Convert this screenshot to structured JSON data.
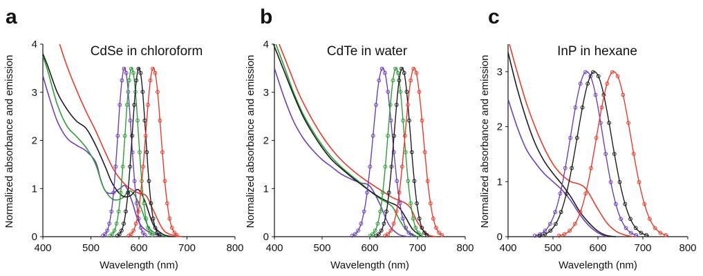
{
  "chart_data": [
    {
      "type": "line",
      "panel_label": "a",
      "title": "CdSe in chloroform",
      "xlabel": "Wavelength (nm)",
      "ylabel": "Normalized absorbance and emission",
      "xlim": [
        400,
        800
      ],
      "ylim": [
        0,
        4
      ],
      "xticks": [
        400,
        500,
        600,
        700,
        800
      ],
      "yticks": [
        0,
        1,
        2,
        3,
        4
      ],
      "series": [
        {
          "name": "absorbance-purple",
          "kind": "absorbance",
          "color": "#6a3fb5",
          "points": [
            [
              400,
              3.35
            ],
            [
              410,
              3.0
            ],
            [
              430,
              2.4
            ],
            [
              450,
              2.05
            ],
            [
              470,
              1.9
            ],
            [
              490,
              1.78
            ],
            [
              510,
              1.55
            ],
            [
              520,
              1.2
            ],
            [
              530,
              0.95
            ],
            [
              545,
              0.9
            ],
            [
              560,
              1.0
            ],
            [
              572,
              1.05
            ],
            [
              585,
              0.75
            ],
            [
              600,
              0.3
            ],
            [
              620,
              0.1
            ],
            [
              650,
              0.0
            ]
          ]
        },
        {
          "name": "absorbance-green",
          "kind": "absorbance",
          "color": "#2e9a3a",
          "points": [
            [
              400,
              3.75
            ],
            [
              410,
              3.45
            ],
            [
              430,
              2.75
            ],
            [
              450,
              2.3
            ],
            [
              470,
              2.08
            ],
            [
              490,
              1.85
            ],
            [
              510,
              1.5
            ],
            [
              525,
              1.05
            ],
            [
              545,
              0.78
            ],
            [
              565,
              0.8
            ],
            [
              582,
              0.95
            ],
            [
              600,
              0.7
            ],
            [
              620,
              0.2
            ],
            [
              640,
              0.05
            ],
            [
              660,
              0.0
            ]
          ]
        },
        {
          "name": "absorbance-black",
          "kind": "absorbance",
          "color": "#1a1a1a",
          "points": [
            [
              400,
              3.8
            ],
            [
              410,
              3.55
            ],
            [
              430,
              3.0
            ],
            [
              450,
              2.65
            ],
            [
              470,
              2.4
            ],
            [
              490,
              2.25
            ],
            [
              510,
              1.9
            ],
            [
              530,
              1.45
            ],
            [
              545,
              1.1
            ],
            [
              565,
              0.85
            ],
            [
              582,
              0.85
            ],
            [
              598,
              0.98
            ],
            [
              612,
              0.75
            ],
            [
              630,
              0.25
            ],
            [
              650,
              0.05
            ],
            [
              670,
              0.0
            ]
          ]
        },
        {
          "name": "absorbance-red",
          "kind": "absorbance",
          "color": "#e8382a",
          "points": [
            [
              435,
              4.0
            ],
            [
              450,
              3.55
            ],
            [
              470,
              3.05
            ],
            [
              490,
              2.6
            ],
            [
              510,
              2.2
            ],
            [
              530,
              1.75
            ],
            [
              550,
              1.35
            ],
            [
              575,
              1.05
            ],
            [
              600,
              0.9
            ],
            [
              615,
              0.85
            ],
            [
              630,
              0.55
            ],
            [
              650,
              0.15
            ],
            [
              670,
              0.03
            ],
            [
              690,
              0.0
            ]
          ]
        },
        {
          "name": "emission-purple",
          "kind": "emission",
          "color": "#6a3fb5",
          "peak": 570,
          "width": 14,
          "height": 3.5
        },
        {
          "name": "emission-green",
          "kind": "emission",
          "color": "#2e9a3a",
          "peak": 585,
          "width": 14,
          "height": 3.5
        },
        {
          "name": "emission-black",
          "kind": "emission",
          "color": "#1a1a1a",
          "peak": 600,
          "width": 14,
          "height": 3.5
        },
        {
          "name": "emission-red",
          "kind": "emission",
          "color": "#e8382a",
          "peak": 630,
          "width": 16,
          "height": 3.5
        }
      ]
    },
    {
      "type": "line",
      "panel_label": "b",
      "title": "CdTe in water",
      "xlabel": "Wavelength (nm)",
      "ylabel": "Normalized absorbance and emission",
      "xlim": [
        400,
        800
      ],
      "ylim": [
        0,
        4
      ],
      "xticks": [
        400,
        500,
        600,
        700,
        800
      ],
      "yticks": [
        0,
        1,
        2,
        3,
        4
      ],
      "series": [
        {
          "name": "absorbance-purple",
          "kind": "absorbance",
          "color": "#6a3fb5",
          "points": [
            [
              400,
              3.5
            ],
            [
              420,
              2.9
            ],
            [
              440,
              2.4
            ],
            [
              460,
              2.05
            ],
            [
              480,
              1.8
            ],
            [
              500,
              1.6
            ],
            [
              520,
              1.45
            ],
            [
              540,
              1.3
            ],
            [
              560,
              1.2
            ],
            [
              580,
              1.12
            ],
            [
              600,
              1.05
            ],
            [
              620,
              0.7
            ],
            [
              640,
              0.25
            ],
            [
              660,
              0.05
            ],
            [
              680,
              0.0
            ]
          ]
        },
        {
          "name": "absorbance-green",
          "kind": "absorbance",
          "color": "#2e9a3a",
          "points": [
            [
              403,
              4.0
            ],
            [
              420,
              3.55
            ],
            [
              440,
              3.0
            ],
            [
              460,
              2.55
            ],
            [
              480,
              2.2
            ],
            [
              500,
              1.9
            ],
            [
              520,
              1.65
            ],
            [
              540,
              1.45
            ],
            [
              560,
              1.28
            ],
            [
              580,
              1.12
            ],
            [
              600,
              0.95
            ],
            [
              620,
              0.8
            ],
            [
              640,
              0.68
            ],
            [
              650,
              0.58
            ],
            [
              665,
              0.3
            ],
            [
              680,
              0.1
            ],
            [
              700,
              0.0
            ]
          ]
        },
        {
          "name": "absorbance-black",
          "kind": "absorbance",
          "color": "#1a1a1a",
          "points": [
            [
              398,
              4.0
            ],
            [
              420,
              3.45
            ],
            [
              440,
              2.95
            ],
            [
              460,
              2.5
            ],
            [
              480,
              2.15
            ],
            [
              500,
              1.85
            ],
            [
              520,
              1.6
            ],
            [
              540,
              1.42
            ],
            [
              560,
              1.25
            ],
            [
              580,
              1.1
            ],
            [
              600,
              0.95
            ],
            [
              620,
              0.82
            ],
            [
              640,
              0.72
            ],
            [
              660,
              0.62
            ],
            [
              675,
              0.4
            ],
            [
              690,
              0.15
            ],
            [
              710,
              0.0
            ]
          ]
        },
        {
          "name": "absorbance-red",
          "kind": "absorbance",
          "color": "#e8382a",
          "points": [
            [
              410,
              4.0
            ],
            [
              430,
              3.5
            ],
            [
              450,
              3.0
            ],
            [
              470,
              2.6
            ],
            [
              490,
              2.25
            ],
            [
              510,
              1.95
            ],
            [
              530,
              1.7
            ],
            [
              550,
              1.5
            ],
            [
              570,
              1.33
            ],
            [
              590,
              1.18
            ],
            [
              610,
              1.05
            ],
            [
              630,
              0.92
            ],
            [
              650,
              0.8
            ],
            [
              670,
              0.72
            ],
            [
              685,
              0.6
            ],
            [
              700,
              0.3
            ],
            [
              720,
              0.05
            ],
            [
              740,
              0.0
            ]
          ]
        },
        {
          "name": "emission-purple",
          "kind": "emission",
          "color": "#6a3fb5",
          "peak": 627,
          "width": 20,
          "height": 3.5
        },
        {
          "name": "emission-green",
          "kind": "emission",
          "color": "#2e9a3a",
          "peak": 655,
          "width": 17,
          "height": 3.5
        },
        {
          "name": "emission-black",
          "kind": "emission",
          "color": "#1a1a1a",
          "peak": 668,
          "width": 17,
          "height": 3.5
        },
        {
          "name": "emission-red",
          "kind": "emission",
          "color": "#e8382a",
          "peak": 693,
          "width": 19,
          "height": 3.5
        }
      ]
    },
    {
      "type": "line",
      "panel_label": "c",
      "title": "InP in hexane",
      "xlabel": "Wavelength (nm)",
      "ylabel": "Normalized absorbance and emission",
      "xlim": [
        400,
        800
      ],
      "ylim": [
        0,
        3.5
      ],
      "xticks": [
        400,
        500,
        600,
        700,
        800
      ],
      "yticks": [
        0,
        1,
        2,
        3
      ],
      "series": [
        {
          "name": "absorbance-purple",
          "kind": "absorbance",
          "color": "#6a3fb5",
          "points": [
            [
              400,
              2.5
            ],
            [
              420,
              2.0
            ],
            [
              440,
              1.6
            ],
            [
              460,
              1.35
            ],
            [
              480,
              1.15
            ],
            [
              500,
              1.0
            ],
            [
              520,
              0.85
            ],
            [
              540,
              0.65
            ],
            [
              560,
              0.4
            ],
            [
              580,
              0.2
            ],
            [
              600,
              0.07
            ],
            [
              620,
              0.0
            ]
          ]
        },
        {
          "name": "absorbance-black",
          "kind": "absorbance",
          "color": "#1a1a1a",
          "points": [
            [
              400,
              3.35
            ],
            [
              420,
              2.7
            ],
            [
              440,
              2.15
            ],
            [
              460,
              1.7
            ],
            [
              480,
              1.38
            ],
            [
              500,
              1.15
            ],
            [
              520,
              0.95
            ],
            [
              540,
              0.72
            ],
            [
              560,
              0.45
            ],
            [
              580,
              0.25
            ],
            [
              600,
              0.1
            ],
            [
              620,
              0.02
            ],
            [
              640,
              0.0
            ]
          ]
        },
        {
          "name": "absorbance-red",
          "kind": "absorbance",
          "color": "#e8382a",
          "points": [
            [
              403,
              3.5
            ],
            [
              420,
              3.0
            ],
            [
              440,
              2.45
            ],
            [
              460,
              2.0
            ],
            [
              480,
              1.62
            ],
            [
              500,
              1.32
            ],
            [
              520,
              1.12
            ],
            [
              540,
              1.0
            ],
            [
              560,
              0.95
            ],
            [
              575,
              0.85
            ],
            [
              600,
              0.5
            ],
            [
              620,
              0.25
            ],
            [
              640,
              0.1
            ],
            [
              660,
              0.03
            ],
            [
              680,
              0.0
            ]
          ]
        },
        {
          "name": "emission-purple",
          "kind": "emission",
          "color": "#6a3fb5",
          "peak": 575,
          "width": 36,
          "height": 3.0
        },
        {
          "name": "emission-black",
          "kind": "emission",
          "color": "#1a1a1a",
          "peak": 592,
          "width": 38,
          "height": 3.0
        },
        {
          "name": "emission-red",
          "kind": "emission",
          "color": "#e8382a",
          "peak": 635,
          "width": 38,
          "height": 3.0
        }
      ]
    }
  ]
}
